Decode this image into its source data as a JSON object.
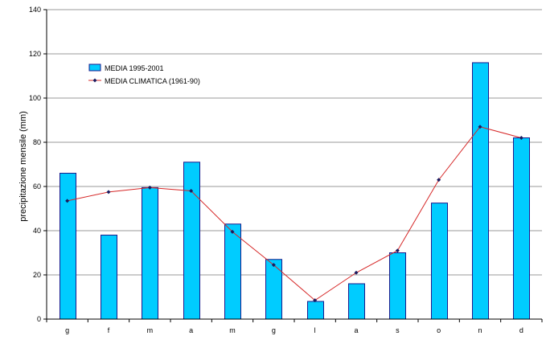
{
  "colors": {
    "bar_fill": "#00ccff",
    "bar_stroke": "#1a1a8c",
    "line": "#d62828",
    "marker": "#1a1a5e",
    "grid": "#9a9a9a",
    "axis": "#000000"
  },
  "chart_data": {
    "type": "bar",
    "title": "",
    "xlabel": "",
    "ylabel": "precipitazione mensile (mm)",
    "ylim": [
      0,
      140
    ],
    "yticks": [
      0,
      20,
      40,
      60,
      80,
      100,
      120,
      140
    ],
    "grid": true,
    "legend_position": "top-left",
    "categories": [
      "g",
      "f",
      "m",
      "a",
      "m",
      "g",
      "l",
      "a",
      "s",
      "o",
      "n",
      "d"
    ],
    "series": [
      {
        "name": "MEDIA 1995-2001",
        "kind": "bar",
        "values": [
          66,
          38,
          59.5,
          71,
          43,
          27,
          8,
          16,
          30,
          52.5,
          116,
          82
        ]
      },
      {
        "name": "MEDIA CLIMATICA (1961-90)",
        "kind": "line",
        "values": [
          53.5,
          57.5,
          59.5,
          58,
          39.5,
          24.5,
          8.5,
          21,
          31,
          63,
          87,
          82
        ]
      }
    ]
  }
}
